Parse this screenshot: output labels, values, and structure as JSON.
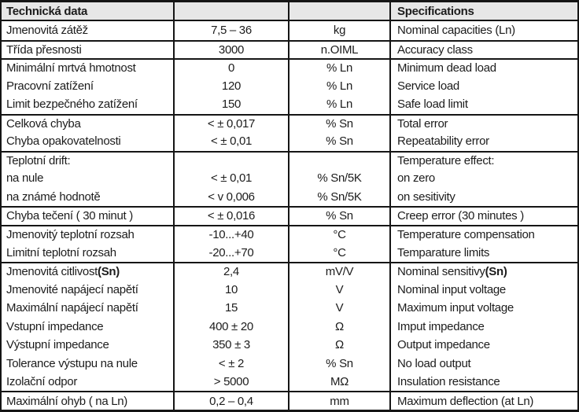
{
  "table": {
    "colors": {
      "border": "#151515",
      "header_bg": "#e7e7e7",
      "text": "#1c1c1c"
    },
    "header": {
      "col1": "Technická data",
      "col2": "",
      "col3": "",
      "col4": "Specifications"
    },
    "rows": [
      {
        "cz": "Jmenovitá zátěž",
        "value": "7,5 – 36",
        "unit": "kg",
        "en": "Nominal capacities (Ln)",
        "divider": false
      },
      {
        "cz": "Třída přesnosti",
        "value": "3000",
        "unit": "n.OIML",
        "en": "Accuracy class",
        "divider": true
      },
      {
        "cz": "Minimální mrtvá hmotnost",
        "value": "0",
        "unit": "% Ln",
        "en": "Minimum dead load",
        "divider": true
      },
      {
        "cz": "Pracovní zatížení",
        "value": "120",
        "unit": "% Ln",
        "en": "Service load",
        "divider": false
      },
      {
        "cz": "Limit bezpečného zatížení",
        "value": "150",
        "unit": "% Ln",
        "en": "Safe load limit",
        "divider": false
      },
      {
        "cz": "Celková chyba",
        "value": "< ± 0,017",
        "unit": "% Sn",
        "en": "Total error",
        "divider": true
      },
      {
        "cz": "Chyba opakovatelnosti",
        "value": "< ± 0,01",
        "unit": "% Sn",
        "en": "Repeatability error",
        "divider": false
      },
      {
        "cz": "Teplotní drift:",
        "value": "",
        "unit": "",
        "en": "Temperature effect:",
        "divider": true
      },
      {
        "cz": "na nule",
        "value": "< ± 0,01",
        "unit": "% Sn/5K",
        "en": "on zero",
        "divider": false
      },
      {
        "cz": "na známé hodnotě",
        "value": "< v 0,006",
        "unit": "% Sn/5K",
        "en": "on sesitivity",
        "divider": false
      },
      {
        "cz": "Chyba tečení ( 30 minut )",
        "value": "< ± 0,016",
        "unit": "% Sn",
        "en": "Creep error (30 minutes )",
        "divider": true
      },
      {
        "cz": "Jmenovitý teplotní rozsah",
        "value": "-10...+40",
        "unit": "°C",
        "en": "Temperature compensation",
        "divider": true
      },
      {
        "cz": "Limitní teplotní rozsah",
        "value": "-20...+70",
        "unit": "°C",
        "en": "Temparature limits",
        "divider": false
      },
      {
        "cz": "Jmenovitá citlivost ",
        "cz_bold": "(Sn)",
        "value": "2,4",
        "unit": "mV/V",
        "en": "Nominal sensitivy ",
        "en_bold": "(Sn)",
        "divider": true
      },
      {
        "cz": "Jmenovité napájecí napětí",
        "value": "10",
        "unit": "V",
        "en": "Nominal input voltage",
        "divider": false
      },
      {
        "cz": "Maximální napájecí napětí",
        "value": "15",
        "unit": "V",
        "en": "Maximum input voltage",
        "divider": false
      },
      {
        "cz": "Vstupní impedance",
        "value": "400 ± 20",
        "unit": "Ω",
        "en": "Imput impedance",
        "divider": false
      },
      {
        "cz": "Výstupní impedance",
        "value": "350 ± 3",
        "unit": "Ω",
        "en": "Output impedance",
        "divider": false
      },
      {
        "cz": "Tolerance výstupu na nule",
        "value": "< ± 2",
        "unit": "% Sn",
        "en": "No load output",
        "divider": false
      },
      {
        "cz": "Izolační odpor",
        "value": "> 5000",
        "unit": "MΩ",
        "en": "Insulation resistance",
        "divider": false
      },
      {
        "cz": "Maximální ohyb ( na Ln)",
        "value": "0,2 – 0,4",
        "unit": "mm",
        "en": "Maximum deflection (at Ln)",
        "divider": true
      }
    ]
  }
}
